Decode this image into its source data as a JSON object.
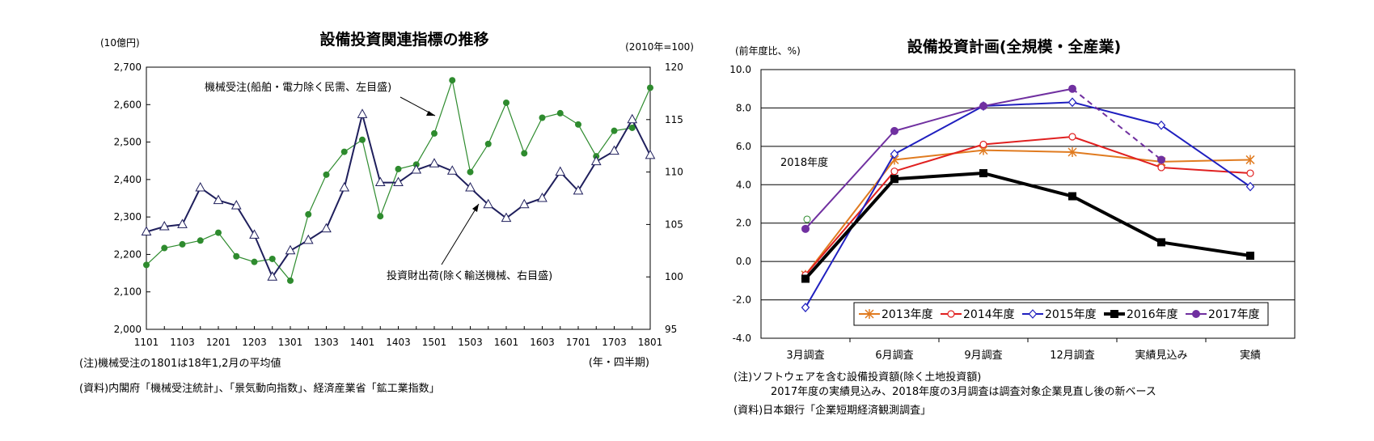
{
  "chart_data": [
    {
      "type": "line",
      "title": "設備投資関連指標の推移",
      "left_unit": "(10億円)",
      "right_unit": "(2010年=100)",
      "x_unit": "(年・四半期)",
      "x": [
        "1101",
        "1102",
        "1103",
        "1104",
        "1201",
        "1202",
        "1203",
        "1204",
        "1301",
        "1302",
        "1303",
        "1304",
        "1401",
        "1402",
        "1403",
        "1404",
        "1501",
        "1502",
        "1503",
        "1504",
        "1601",
        "1602",
        "1603",
        "1604",
        "1701",
        "1702",
        "1703",
        "1704",
        "1801"
      ],
      "x_tick_labels": [
        "1101",
        "1103",
        "1201",
        "1203",
        "1301",
        "1303",
        "1401",
        "1403",
        "1501",
        "1503",
        "1601",
        "1603",
        "1701",
        "1703",
        "1801"
      ],
      "ylim_left": [
        2000,
        2700
      ],
      "yticks_left": [
        "2,000",
        "2,100",
        "2,200",
        "2,300",
        "2,400",
        "2,500",
        "2,600",
        "2,700"
      ],
      "ylim_right": [
        95,
        120
      ],
      "yticks_right": [
        "95",
        "100",
        "105",
        "110",
        "115",
        "120"
      ],
      "grid": false,
      "series": [
        {
          "name": "機械受注(船舶・電力除く民需、左目盛)",
          "axis": "left",
          "color": "#2e8b2e",
          "marker": "filled-circle",
          "values": [
            2172,
            2217,
            2227,
            2237,
            2258,
            2195,
            2180,
            2188,
            2130,
            2307,
            2413,
            2474,
            2506,
            2302,
            2428,
            2440,
            2523,
            2665,
            2420,
            2495,
            2605,
            2470,
            2565,
            2577,
            2547,
            2462,
            2530,
            2538,
            2645
          ]
        },
        {
          "name": "投資財出荷(除く輸送機械、右目盛)",
          "axis": "right",
          "color": "#1f1f5c",
          "marker": "open-triangle",
          "values": [
            104.3,
            104.8,
            105.0,
            108.5,
            107.3,
            106.8,
            104.0,
            100.0,
            102.5,
            103.5,
            104.6,
            108.5,
            115.5,
            109.0,
            109.0,
            110.2,
            110.8,
            110.1,
            108.5,
            106.9,
            105.6,
            106.9,
            107.5,
            110.0,
            108.2,
            111.0,
            112.0,
            115.0,
            111.6
          ]
        }
      ],
      "notes": [
        "(注)機械受注の1801は18年1,2月の平均値",
        "(資料)内閣府「機械受注統計」、「景気動向指数」、経済産業省「鉱工業指数」"
      ]
    },
    {
      "type": "line",
      "title": "設備投資計画(全規模・全産業)",
      "y_unit": "(前年度比、%)",
      "categories": [
        "3月調査",
        "6月調査",
        "9月調査",
        "12月調査",
        "実績見込み",
        "実績"
      ],
      "ylim": [
        -4.0,
        10.0
      ],
      "yticks": [
        "-4.0",
        "-2.0",
        "0.0",
        "2.0",
        "4.0",
        "6.0",
        "8.0",
        "10.0"
      ],
      "grid": true,
      "legend": "bottom-right",
      "annotation": "2018年度",
      "annotation_value": 2.2,
      "series": [
        {
          "name": "2013年度",
          "color": "#e07b20",
          "marker": "asterisk",
          "values": [
            -0.7,
            5.3,
            5.8,
            5.7,
            5.2,
            5.3
          ]
        },
        {
          "name": "2014年度",
          "color": "#e02020",
          "marker": "open-circle",
          "values": [
            -0.7,
            4.7,
            6.1,
            6.5,
            4.9,
            4.6
          ]
        },
        {
          "name": "2015年度",
          "color": "#1f1fbf",
          "marker": "open-diamond",
          "values": [
            -2.4,
            5.6,
            8.1,
            8.3,
            7.1,
            3.9
          ]
        },
        {
          "name": "2016年度",
          "color": "#000000",
          "marker": "filled-square",
          "values": [
            -0.9,
            4.3,
            4.6,
            3.4,
            1.0,
            0.3
          ]
        },
        {
          "name": "2017年度",
          "color": "#7030a0",
          "marker": "filled-circle",
          "values": [
            1.7,
            6.8,
            8.1,
            9.0,
            5.3,
            null
          ],
          "dashed_from_index": 3
        }
      ],
      "notes": [
        "(注)ソフトウェアを含む設備投資額(除く土地投資額)",
        "2017年度の実績見込み、2018年度の3月調査は調査対象企業見直し後の新ベース",
        "(資料)日本銀行「企業短期経済観測調査」"
      ]
    }
  ]
}
